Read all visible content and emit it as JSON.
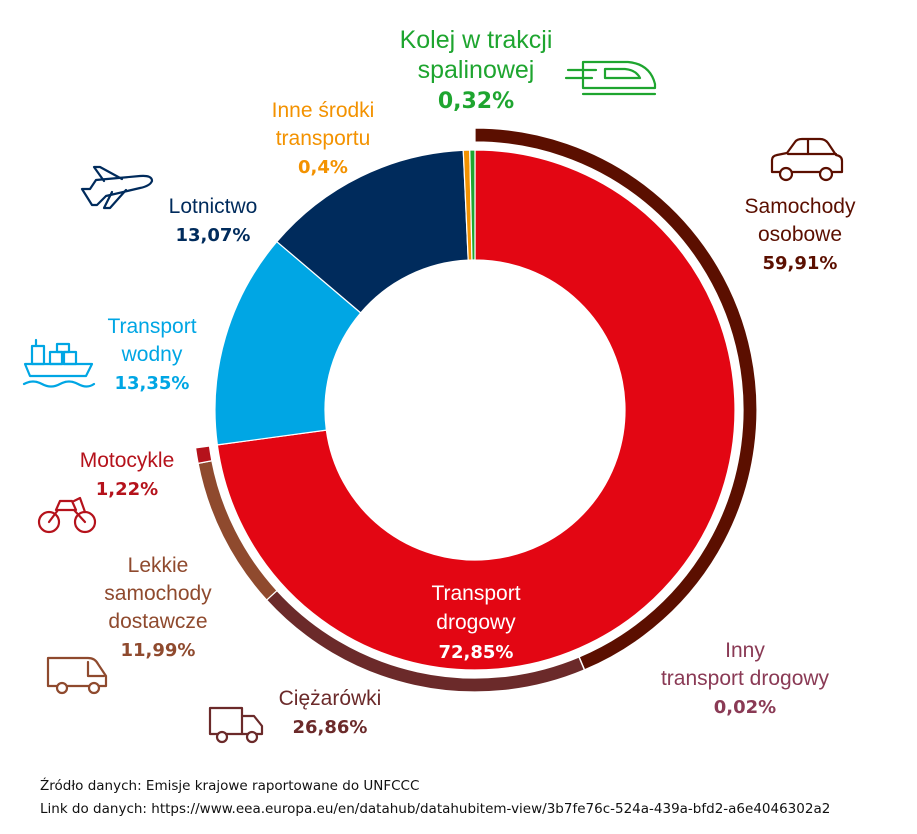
{
  "chart_data": {
    "type": "pie",
    "inner_ring": [
      {
        "label": "Transport drogowy",
        "label_lines": [
          "Transport",
          "drogowy"
        ],
        "value": 72.85,
        "value_text": "72,85%",
        "color": "#e30613",
        "text_color": "#ffffff"
      },
      {
        "label": "Transport wodny",
        "label_lines": [
          "Transport",
          "wodny"
        ],
        "value": 13.35,
        "value_text": "13,35%",
        "color": "#00a6e4",
        "text_color": "#00a6e4"
      },
      {
        "label": "Lotnictwo",
        "label_lines": [
          "Lotnictwo"
        ],
        "value": 13.07,
        "value_text": "13,07%",
        "color": "#002b5c",
        "text_color": "#002b5c"
      },
      {
        "label": "Inne środki transportu",
        "label_lines": [
          "Inne środki",
          "transportu"
        ],
        "value": 0.4,
        "value_text": "0,4%",
        "color": "#f39200",
        "text_color": "#f39200"
      },
      {
        "label": "Kolej w trakcji spalinowej",
        "label_lines": [
          "Kolej w trakcji",
          "spalinowej"
        ],
        "value": 0.32,
        "value_text": "0,32%",
        "color": "#1ea52f",
        "text_color": "#1ea52f"
      }
    ],
    "outer_ring": {
      "parent": "Transport drogowy",
      "segments": [
        {
          "label": "Samochody osobowe",
          "label_lines": [
            "Samochody",
            "osobowe"
          ],
          "value": 59.91,
          "value_text": "59,91%",
          "color": "#5b0f00",
          "text_color": "#5b0f00"
        },
        {
          "label": "Inny transport drogowy",
          "label_lines": [
            "Inny",
            "transport drogowy"
          ],
          "value": 0.02,
          "value_text": "0,02%",
          "color": "#8a3a55",
          "text_color": "#8a3a55"
        },
        {
          "label": "Ciężarówki",
          "label_lines": [
            "Ciężarówki"
          ],
          "value": 26.86,
          "value_text": "26,86%",
          "color": "#6b2a2a",
          "text_color": "#6b2a2a"
        },
        {
          "label": "Lekkie samochody dostawcze",
          "label_lines": [
            "Lekkie",
            "samochody",
            "dostawcze"
          ],
          "value": 11.99,
          "value_text": "11,99%",
          "color": "#8f4a2e",
          "text_color": "#8f4a2e"
        },
        {
          "label": "Motocykle",
          "label_lines": [
            "Motocykle"
          ],
          "value": 1.22,
          "value_text": "1,22%",
          "color": "#b5121b",
          "text_color": "#b5121b"
        }
      ]
    },
    "icons": [
      "train-icon",
      "car-icon",
      "plane-icon",
      "ship-icon",
      "motorcycle-icon",
      "van-icon",
      "truck-icon"
    ]
  },
  "source": {
    "line1": "Źródło danych: Emisje krajowe raportowane do UNFCCC",
    "line2": "Link do danych: https://www.eea.europa.eu/en/datahub/datahubitem-view/3b7fe76c-524a-439a-bfd2-a6e4046302a2"
  }
}
